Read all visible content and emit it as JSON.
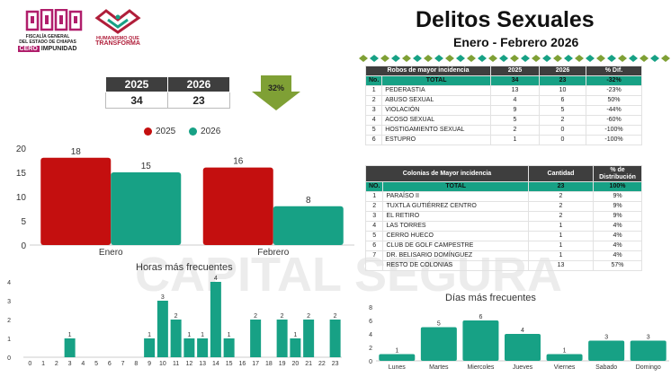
{
  "logos": {
    "fiscalia_line1": "FISCALÍA GENERAL",
    "fiscalia_line2": "DEL ESTADO DE CHIAPAS",
    "cero": "CERO",
    "impunidad": "IMPUNIDAD",
    "humanismo_line1": "HUMANISMO QUE",
    "humanismo_line2": "TRANSFORMA"
  },
  "watermark": {
    "text": "CAPITAL SEGURA"
  },
  "header": {
    "title": "Delitos Sexuales",
    "subtitle": "Enero - Febrero 2026"
  },
  "comparison": {
    "col_2025": "2025",
    "col_2026": "2026",
    "val_2025": "34",
    "val_2026": "23",
    "change": "32%"
  },
  "colors": {
    "c2025": "#c40f0f",
    "c2026": "#17a185",
    "dark": "#3e3e3e",
    "arrow": "#7fa035"
  },
  "monthly_chart": {
    "type": "bar",
    "legend": [
      "2025",
      "2026"
    ],
    "categories": [
      "Enero",
      "Febrero"
    ],
    "series": [
      {
        "name": "2025",
        "values": [
          18,
          16
        ]
      },
      {
        "name": "2026",
        "values": [
          15,
          8
        ]
      }
    ],
    "yticks": [
      "0",
      "5",
      "10",
      "15",
      "20"
    ],
    "ylim": [
      0,
      20
    ]
  },
  "hours_chart": {
    "type": "bar",
    "title": "Horas más frecuentes",
    "categories": [
      "0",
      "1",
      "2",
      "3",
      "4",
      "5",
      "6",
      "7",
      "8",
      "9",
      "10",
      "11",
      "12",
      "13",
      "14",
      "15",
      "16",
      "17",
      "18",
      "19",
      "20",
      "21",
      "22",
      "23"
    ],
    "values": [
      0,
      0,
      0,
      1,
      0,
      0,
      0,
      0,
      0,
      1,
      3,
      2,
      1,
      1,
      4,
      1,
      0,
      2,
      0,
      2,
      1,
      2,
      0,
      2
    ],
    "yticks": [
      "0",
      "1",
      "2",
      "3",
      "4"
    ],
    "ylim": [
      0,
      4
    ]
  },
  "days_chart": {
    "type": "bar",
    "title": "Días más frecuentes",
    "categories": [
      "Lunes",
      "Martes",
      "Miercoles",
      "Jueves",
      "Viernes",
      "Sabado",
      "Domingo"
    ],
    "values": [
      1,
      5,
      6,
      4,
      1,
      3,
      3
    ],
    "yticks": [
      "0",
      "2",
      "4",
      "6",
      "8"
    ],
    "ylim": [
      0,
      8
    ]
  },
  "robos_table": {
    "headers": [
      "Robos de mayor incidencia",
      "2025",
      "2026",
      "% Dif."
    ],
    "total": {
      "no": "No.",
      "label": "TOTAL",
      "v2025": "34",
      "v2026": "23",
      "dif": "-32%"
    },
    "rows": [
      {
        "no": "1",
        "label": "PEDERASTIA",
        "v2025": "13",
        "v2026": "10",
        "dif": "-23%"
      },
      {
        "no": "2",
        "label": "ABUSO SEXUAL",
        "v2025": "4",
        "v2026": "6",
        "dif": "50%"
      },
      {
        "no": "3",
        "label": "VIOLACIÓN",
        "v2025": "9",
        "v2026": "5",
        "dif": "-44%"
      },
      {
        "no": "4",
        "label": "ACOSO SEXUAL",
        "v2025": "5",
        "v2026": "2",
        "dif": "-60%"
      },
      {
        "no": "5",
        "label": "HOSTIGAMIENTO SEXUAL",
        "v2025": "2",
        "v2026": "0",
        "dif": "-100%"
      },
      {
        "no": "6",
        "label": "ESTUPRO",
        "v2025": "1",
        "v2026": "0",
        "dif": "-100%"
      }
    ]
  },
  "colonias_table": {
    "headers": [
      "Colonias de Mayor incidencia",
      "Cantidad",
      "% de Distribución"
    ],
    "total": {
      "no": "NO.",
      "label": "TOTAL",
      "cantidad": "23",
      "pct": "100%"
    },
    "rows": [
      {
        "no": "1",
        "label": "PARAÍSO II",
        "cantidad": "2",
        "pct": "9%"
      },
      {
        "no": "2",
        "label": "TUXTLA GUTIÉRREZ CENTRO",
        "cantidad": "2",
        "pct": "9%"
      },
      {
        "no": "3",
        "label": "EL RETIRO",
        "cantidad": "2",
        "pct": "9%"
      },
      {
        "no": "4",
        "label": "LAS TORRES",
        "cantidad": "1",
        "pct": "4%"
      },
      {
        "no": "5",
        "label": "CERRO HUECO",
        "cantidad": "1",
        "pct": "4%"
      },
      {
        "no": "6",
        "label": "CLUB DE GOLF CAMPESTRE",
        "cantidad": "1",
        "pct": "4%"
      },
      {
        "no": "7",
        "label": "DR. BELISARIO DOMÍNGUEZ",
        "cantidad": "1",
        "pct": "4%"
      },
      {
        "no": "",
        "label": "RESTO DE COLONIAS",
        "cantidad": "13",
        "pct": "57%"
      }
    ]
  }
}
